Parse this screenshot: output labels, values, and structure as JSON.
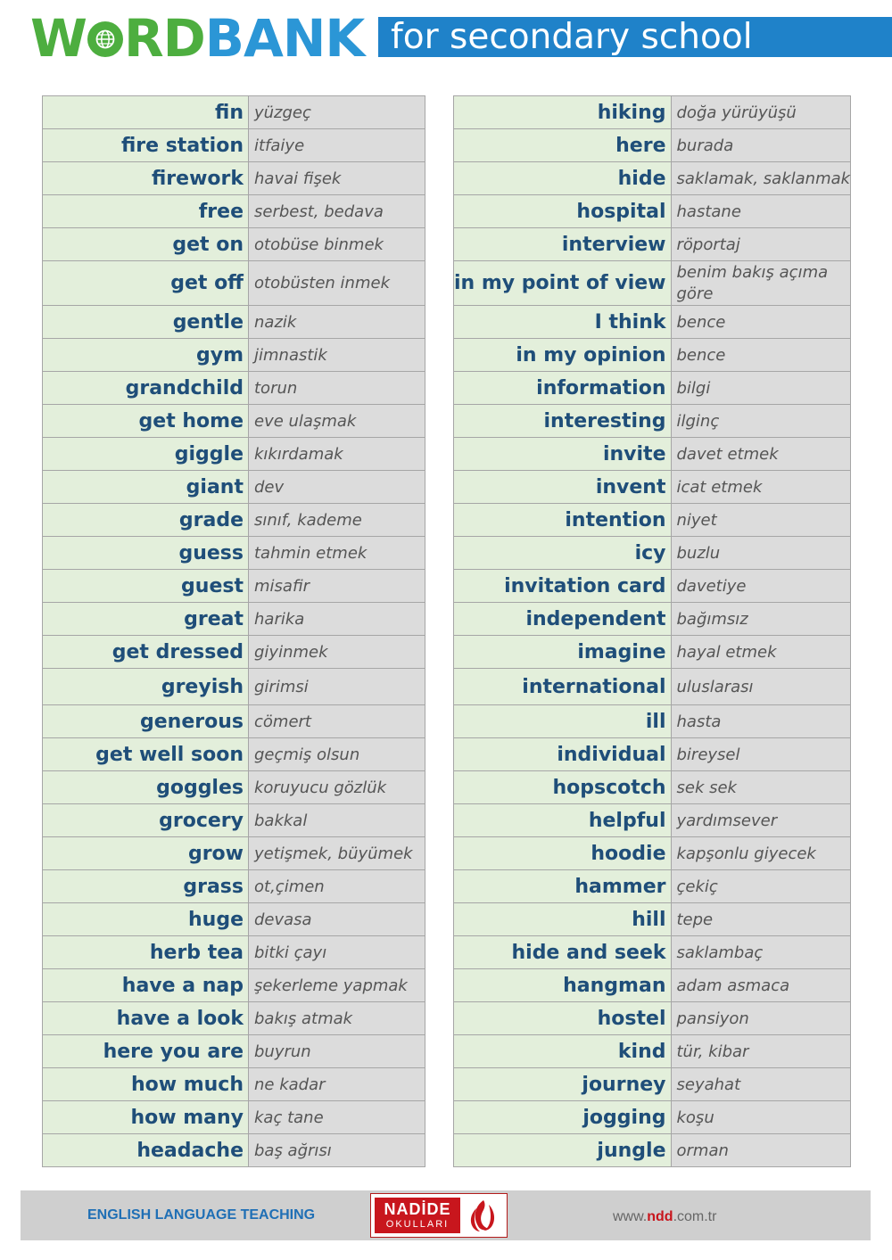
{
  "header": {
    "logo_part1": "W",
    "logo_part2": "RD",
    "logo_part3": "BANK",
    "subtitle": "for secondary school"
  },
  "left_table": [
    {
      "en": "fin",
      "tr": "yüzgeç"
    },
    {
      "en": "fire station",
      "tr": "itfaiye"
    },
    {
      "en": "firework",
      "tr": "havai fişek"
    },
    {
      "en": "free",
      "tr": "serbest, bedava"
    },
    {
      "en": "get on",
      "tr": "otobüse binmek"
    },
    {
      "en": "get off",
      "tr": "otobüsten inmek"
    },
    {
      "en": "gentle",
      "tr": "nazik"
    },
    {
      "en": "gym",
      "tr": "jimnastik"
    },
    {
      "en": "grandchild",
      "tr": "torun"
    },
    {
      "en": "get home",
      "tr": "eve ulaşmak"
    },
    {
      "en": "giggle",
      "tr": "kıkırdamak"
    },
    {
      "en": "giant",
      "tr": "dev"
    },
    {
      "en": "grade",
      "tr": "sınıf, kademe"
    },
    {
      "en": "guess",
      "tr": "tahmin etmek"
    },
    {
      "en": "guest",
      "tr": "misafir"
    },
    {
      "en": "great",
      "tr": "harika"
    },
    {
      "en": "get dressed",
      "tr": "giyinmek"
    },
    {
      "en": "greyish",
      "tr": "girimsi"
    },
    {
      "en": "generous",
      "tr": "cömert"
    },
    {
      "en": "get well soon",
      "tr": "geçmiş olsun"
    },
    {
      "en": "goggles",
      "tr": "koruyucu gözlük"
    },
    {
      "en": "grocery",
      "tr": "bakkal"
    },
    {
      "en": "grow",
      "tr": "yetişmek, büyümek"
    },
    {
      "en": "grass",
      "tr": "ot,çimen"
    },
    {
      "en": "huge",
      "tr": "devasa"
    },
    {
      "en": "herb tea",
      "tr": "bitki çayı"
    },
    {
      "en": "have a nap",
      "tr": "şekerleme yapmak"
    },
    {
      "en": "have a look",
      "tr": "bakış atmak"
    },
    {
      "en": "here you are",
      "tr": "buyrun"
    },
    {
      "en": "how much",
      "tr": "ne kadar"
    },
    {
      "en": "how many",
      "tr": "kaç tane"
    },
    {
      "en": "headache",
      "tr": "baş ağrısı"
    }
  ],
  "right_table": [
    {
      "en": "hiking",
      "tr": "doğa yürüyüşü"
    },
    {
      "en": "here",
      "tr": "burada"
    },
    {
      "en": "hide",
      "tr": "saklamak, saklanmak"
    },
    {
      "en": "hospital",
      "tr": "hastane"
    },
    {
      "en": "interview",
      "tr": "röportaj"
    },
    {
      "en": "in my point of view",
      "tr": "benim bakış açıma göre"
    },
    {
      "en": "I think",
      "tr": "bence"
    },
    {
      "en": "in my opinion",
      "tr": "bence"
    },
    {
      "en": "information",
      "tr": "bilgi"
    },
    {
      "en": "interesting",
      "tr": "ilginç"
    },
    {
      "en": "invite",
      "tr": "davet etmek"
    },
    {
      "en": "invent",
      "tr": "icat etmek"
    },
    {
      "en": "intention",
      "tr": "niyet"
    },
    {
      "en": "icy",
      "tr": "buzlu"
    },
    {
      "en": "invitation card",
      "tr": "davetiye"
    },
    {
      "en": "independent",
      "tr": "bağımsız"
    },
    {
      "en": "imagine",
      "tr": "hayal etmek"
    },
    {
      "en": "international",
      "tr": "uluslarası"
    },
    {
      "en": "ill",
      "tr": "hasta"
    },
    {
      "en": "individual",
      "tr": "bireysel"
    },
    {
      "en": "hopscotch",
      "tr": "sek sek"
    },
    {
      "en": "helpful",
      "tr": "yardımsever"
    },
    {
      "en": "hoodie",
      "tr": "kapşonlu giyecek"
    },
    {
      "en": "hammer",
      "tr": "çekiç"
    },
    {
      "en": "hill",
      "tr": "tepe"
    },
    {
      "en": "hide and seek",
      "tr": "saklambaç"
    },
    {
      "en": "hangman",
      "tr": "adam asmaca"
    },
    {
      "en": "hostel",
      "tr": "pansiyon"
    },
    {
      "en": "kind",
      "tr": "tür, kibar"
    },
    {
      "en": "journey",
      "tr": "seyahat"
    },
    {
      "en": "jogging",
      "tr": "koşu"
    },
    {
      "en": "jungle",
      "tr": "orman"
    }
  ],
  "footer": {
    "left_text": "ENGLISH LANGUAGE TEACHING",
    "logo_name": "NADİDE",
    "logo_sub": "OKULLARI",
    "url_prefix": "www.",
    "url_brand": "ndd",
    "url_suffix": ".com.tr"
  },
  "colors": {
    "logo_green": "#4dae3f",
    "logo_blue": "#2b96d6",
    "header_band": "#1f82c9",
    "english_cell": "#e3efdb",
    "turkish_cell": "#dcdcdc",
    "english_text": "#1f4e79",
    "footer_red": "#c8161d"
  },
  "icons": [
    "globe-icon",
    "nadide-flame-icon"
  ]
}
